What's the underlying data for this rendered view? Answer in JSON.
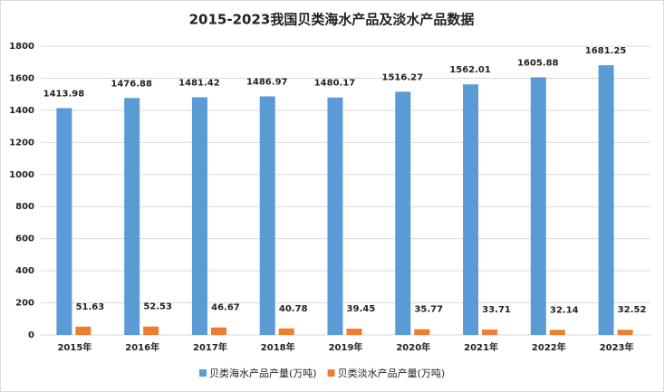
{
  "chart_data": {
    "type": "bar",
    "title": "2015-2023我国贝类海水产品及淡水产品数据",
    "categories": [
      "2015年",
      "2016年",
      "2017年",
      "2018年",
      "2019年",
      "2020年",
      "2021年",
      "2022年",
      "2023年"
    ],
    "series": [
      {
        "name": "贝类海水产品产量(万吨)",
        "color": "#5b9bd5",
        "values": [
          1413.98,
          1476.88,
          1481.42,
          1486.97,
          1480.17,
          1516.27,
          1562.01,
          1605.88,
          1681.25
        ]
      },
      {
        "name": "贝类淡水产品产量(万吨)",
        "color": "#ed7d31",
        "values": [
          51.63,
          52.53,
          46.67,
          40.78,
          39.45,
          35.77,
          33.71,
          32.14,
          32.52
        ]
      }
    ],
    "ylim": [
      0,
      1800
    ],
    "yticks": [
      0,
      200,
      400,
      600,
      800,
      1000,
      1200,
      1400,
      1600,
      1800
    ],
    "grid": true,
    "legend": "bottom"
  }
}
